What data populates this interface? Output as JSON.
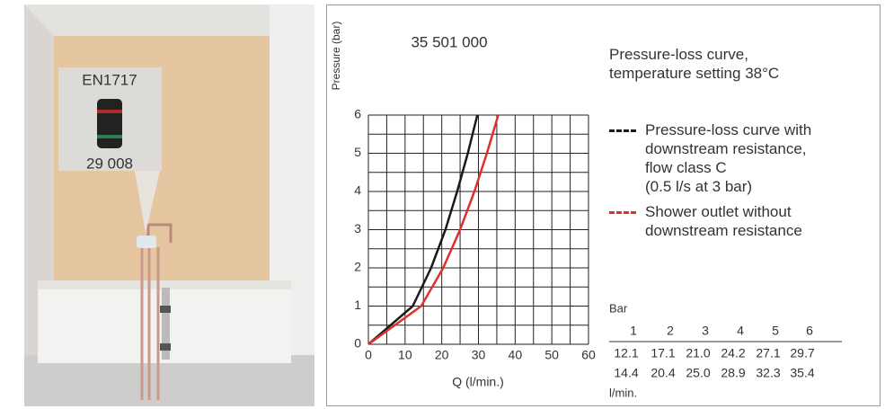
{
  "illustration": {
    "label_top": "EN1717",
    "label_bottom": "29 008"
  },
  "chart_data": {
    "type": "line",
    "title": "35 501 000",
    "legend_title": "Pressure-loss curve,\ntemperature setting 38°C",
    "xlabel": "Q (l/min.)",
    "ylabel": "Pressure (bar)",
    "xlim": [
      0,
      60
    ],
    "ylim": [
      0,
      6
    ],
    "xticks": [
      0,
      10,
      20,
      30,
      40,
      50,
      60
    ],
    "yticks": [
      0,
      1,
      2,
      3,
      4,
      5,
      6
    ],
    "grid": true,
    "minor_grid": true,
    "series": [
      {
        "name": "Pressure-loss curve with\ndownstream resistance,\nflow class C\n(0.5 l/s at 3 bar)",
        "color": "#1a1a1a",
        "dashed_marker": true,
        "x": [
          0,
          12.1,
          17.1,
          21.0,
          24.2,
          27.1,
          29.7
        ],
        "values": [
          0,
          1,
          2,
          3,
          4,
          5,
          6
        ]
      },
      {
        "name": "Shower outlet without\ndownstream resistance",
        "color": "#e0302a",
        "dashed_marker": true,
        "x": [
          0,
          14.4,
          20.4,
          25.0,
          28.9,
          32.3,
          35.4
        ],
        "values": [
          0,
          1,
          2,
          3,
          4,
          5,
          6
        ]
      }
    ]
  },
  "table": {
    "unit_top": "Bar",
    "header": [
      "1",
      "2",
      "3",
      "4",
      "5",
      "6"
    ],
    "rows": [
      [
        "12.1",
        "17.1",
        "21.0",
        "24.2",
        "27.1",
        "29.7"
      ],
      [
        "14.4",
        "20.4",
        "25.0",
        "28.9",
        "32.3",
        "35.4"
      ]
    ],
    "unit_bottom": "l/min."
  }
}
